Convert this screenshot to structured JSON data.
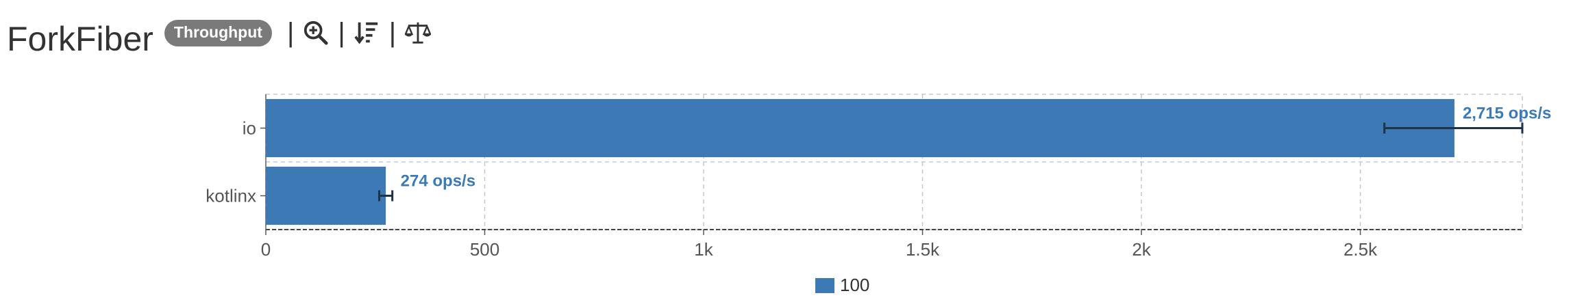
{
  "header": {
    "title": "ForkFiber",
    "badge": "Throughput",
    "separator": "|",
    "tools": [
      "zoom-in-icon",
      "sort-descending-icon",
      "balance-scale-icon"
    ]
  },
  "colors": {
    "bar": "#3d7ab5",
    "error_bar": "#1f3347",
    "label": "#3b7ab5",
    "grid": "#c8c8c8"
  },
  "chart_data": {
    "type": "bar",
    "orientation": "horizontal",
    "categories": [
      "io",
      "kotlinx"
    ],
    "series": [
      {
        "name": "100",
        "values": [
          2715,
          274
        ],
        "error_low": [
          2555,
          259
        ],
        "error_high": [
          2870,
          289
        ],
        "labels": [
          "2,715 ops/s",
          "274 ops/s"
        ]
      }
    ],
    "xlim": [
      0,
      2870
    ],
    "xticks": [
      0,
      500,
      1000,
      1500,
      2000,
      2500
    ],
    "xtick_labels": [
      "0",
      "500",
      "1k",
      "1.5k",
      "2k",
      "2.5k"
    ],
    "grid": true,
    "legend": "bottom-center"
  }
}
